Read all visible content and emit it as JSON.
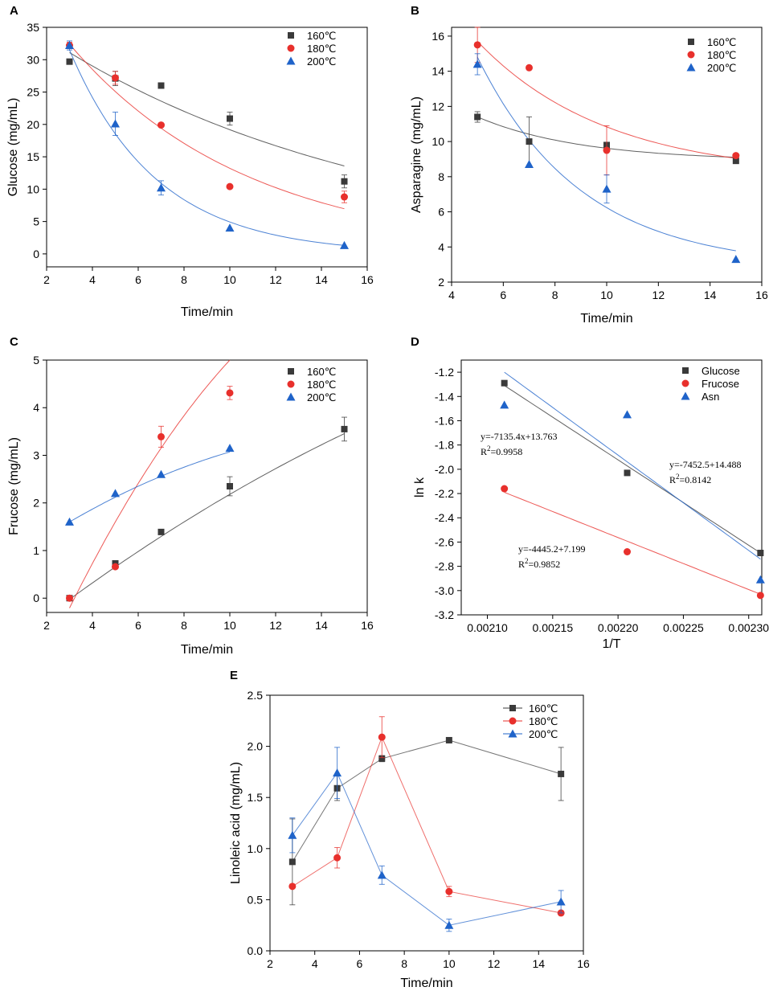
{
  "chart_data": [
    {
      "panel": "A",
      "type": "scatter",
      "xlabel": "Time/min",
      "ylabel": "Glucose (mg/mL)",
      "xlim": [
        2,
        16
      ],
      "ylim": [
        -2,
        35
      ],
      "xticks": [
        2,
        4,
        6,
        8,
        10,
        12,
        14,
        16
      ],
      "yticks": [
        0,
        5,
        10,
        15,
        20,
        25,
        30,
        35
      ],
      "legend": "top-right",
      "series": [
        {
          "name": "160℃",
          "color": "#3a3a3a",
          "marker": "square",
          "x": [
            3,
            5,
            7,
            10,
            15
          ],
          "y": [
            29.7,
            27.1,
            26.0,
            20.9,
            11.2
          ],
          "err": [
            0,
            1.1,
            0,
            1.0,
            1.0
          ],
          "fit": {
            "kind": "exp",
            "x0": 3,
            "x1": 15,
            "y0": 31.1,
            "rate": 0.069
          }
        },
        {
          "name": "180℃",
          "color": "#e8302c",
          "marker": "circle",
          "x": [
            3,
            5,
            7,
            10,
            15
          ],
          "y": [
            32.2,
            27.2,
            19.9,
            10.4,
            8.8
          ],
          "err": [
            0.5,
            1.0,
            0,
            0,
            0.9
          ],
          "fit": {
            "kind": "exp",
            "x0": 3,
            "x1": 15,
            "y0": 32.4,
            "rate": 0.128
          }
        },
        {
          "name": "200℃",
          "color": "#1f63c9",
          "marker": "triangle",
          "x": [
            3,
            5,
            7,
            10,
            15
          ],
          "y": [
            32.2,
            20.1,
            10.2,
            4.0,
            1.3
          ],
          "err": [
            0.7,
            1.8,
            1.1,
            0,
            0
          ],
          "fit": {
            "kind": "exp",
            "x0": 3,
            "x1": 15,
            "y0": 31.5,
            "rate": 0.265
          }
        }
      ]
    },
    {
      "panel": "B",
      "type": "scatter",
      "xlabel": "Time/min",
      "ylabel": "Asparagine (mg/mL)",
      "xlim": [
        4,
        16
      ],
      "ylim": [
        2,
        16.5
      ],
      "xticks": [
        4,
        6,
        8,
        10,
        12,
        14,
        16
      ],
      "yticks": [
        2,
        4,
        6,
        8,
        10,
        12,
        14,
        16
      ],
      "legend": "top-right",
      "series": [
        {
          "name": "160℃",
          "color": "#3a3a3a",
          "marker": "square",
          "x": [
            5,
            7,
            10,
            15
          ],
          "y": [
            11.4,
            10.0,
            9.8,
            8.9
          ],
          "err": [
            0.3,
            1.4,
            0,
            0
          ],
          "fit": {
            "kind": "expc",
            "x0": 5,
            "x1": 15,
            "c": 8.9,
            "a": 2.5,
            "rate": 0.25
          }
        },
        {
          "name": "180℃",
          "color": "#e8302c",
          "marker": "circle",
          "x": [
            5,
            7,
            10,
            15
          ],
          "y": [
            15.5,
            14.2,
            9.5,
            9.2
          ],
          "err": [
            1.0,
            0,
            1.4,
            0
          ],
          "fit": {
            "kind": "expc",
            "x0": 5,
            "x1": 15,
            "c": 8.0,
            "a": 7.7,
            "rate": 0.2
          }
        },
        {
          "name": "200℃",
          "color": "#1f63c9",
          "marker": "triangle",
          "x": [
            5,
            7,
            10,
            15
          ],
          "y": [
            14.4,
            8.7,
            7.3,
            3.3
          ],
          "err": [
            0.6,
            0,
            0.8,
            0
          ],
          "fit": {
            "kind": "expc",
            "x0": 5,
            "x1": 15,
            "c": 2.8,
            "a": 12.0,
            "rate": 0.25
          }
        }
      ]
    },
    {
      "panel": "C",
      "type": "scatter",
      "xlabel": "Time/min",
      "ylabel": "Frucose (mg/mL)",
      "xlim": [
        2,
        16
      ],
      "ylim": [
        -0.3,
        5
      ],
      "xticks": [
        2,
        4,
        6,
        8,
        10,
        12,
        14,
        16
      ],
      "yticks": [
        0,
        1,
        2,
        3,
        4,
        5
      ],
      "legend": "top-right",
      "series": [
        {
          "name": "160℃",
          "color": "#3a3a3a",
          "marker": "square",
          "x": [
            3,
            5,
            7,
            10,
            15
          ],
          "y": [
            0.0,
            0.73,
            1.39,
            2.35,
            3.55
          ],
          "err": [
            0,
            0.05,
            0,
            0.2,
            0.25
          ],
          "fit": {
            "kind": "poly2",
            "x0": 3,
            "x1": 15,
            "a": -0.005,
            "b": 0.38,
            "c": -1.12
          }
        },
        {
          "name": "180℃",
          "color": "#e8302c",
          "marker": "circle",
          "x": [
            3,
            5,
            7,
            10
          ],
          "y": [
            0.0,
            0.66,
            3.39,
            4.31
          ],
          "err": [
            0,
            0,
            0.22,
            0.14
          ],
          "fit": {
            "kind": "poly2",
            "x0": 3,
            "x1": 10,
            "a": -0.032,
            "b": 1.16,
            "c": -3.4
          }
        },
        {
          "name": "200℃",
          "color": "#1f63c9",
          "marker": "triangle",
          "x": [
            3,
            5,
            7,
            10
          ],
          "y": [
            1.6,
            2.2,
            2.6,
            3.15
          ],
          "err": [
            0,
            0,
            0,
            0
          ],
          "fit": {
            "kind": "poly2",
            "x0": 3,
            "x1": 10,
            "a": -0.01,
            "b": 0.34,
            "c": 0.67
          }
        }
      ]
    },
    {
      "panel": "D",
      "type": "scatter",
      "xlabel": "1/T",
      "ylabel": "ln k",
      "xlim": [
        0.00208,
        0.00231
      ],
      "ylim": [
        -3.2,
        -1.1
      ],
      "xticks": [
        "0.00210",
        "0.00215",
        "0.00220",
        "0.00225",
        "0.00230"
      ],
      "yticks": [
        "-1.2",
        "-1.4",
        "-1.6",
        "-1.8",
        "-2.0",
        "-2.2",
        "-2.4",
        "-2.6",
        "-2.8",
        "-3.0",
        "-3.2"
      ],
      "legend": "top-right",
      "annotations": [
        {
          "line1": "y=-7135.4x+13.763",
          "line2": "R",
          "sup": "2",
          "line2b": "=0.9958"
        },
        {
          "line1": "y=-7452.5+14.488",
          "line2": "R",
          "sup": "2",
          "line2b": "=0.8142"
        },
        {
          "line1": "y=-4445.2+7.199",
          "line2": "R",
          "sup": "2",
          "line2b": "=0.9852"
        }
      ],
      "series": [
        {
          "name": "Glucose",
          "color": "#3a3a3a",
          "marker": "square",
          "x": [
            0.002113,
            0.002207,
            0.002309
          ],
          "y": [
            -1.29,
            -2.03,
            -2.69
          ],
          "err": [
            0,
            0,
            0
          ],
          "fit": {
            "kind": "linear",
            "x0": 0.002113,
            "x1": 0.002309,
            "y0": -1.31,
            "y1": -2.69
          }
        },
        {
          "name": "Frucose",
          "color": "#e8302c",
          "marker": "circle",
          "x": [
            0.002113,
            0.002207,
            0.002309
          ],
          "y": [
            -2.16,
            -2.68,
            -3.04
          ],
          "err": [
            0,
            0,
            0
          ],
          "fit": {
            "kind": "linear",
            "x0": 0.002113,
            "x1": 0.002309,
            "y0": -2.19,
            "y1": -3.03
          }
        },
        {
          "name": "Asn",
          "color": "#1f63c9",
          "marker": "triangle",
          "x": [
            0.002113,
            0.002207,
            0.002309
          ],
          "y": [
            -1.47,
            -1.55,
            -2.91
          ],
          "err": [
            0,
            0,
            0
          ],
          "fit": {
            "kind": "linear",
            "x0": 0.002113,
            "x1": 0.002309,
            "y0": -1.2,
            "y1": -2.74
          }
        }
      ]
    },
    {
      "panel": "E",
      "type": "line",
      "xlabel": "Time/min",
      "ylabel": "Linoleic acid (mg/mL)",
      "xlim": [
        2,
        16
      ],
      "ylim": [
        0,
        2.5
      ],
      "xticks": [
        2,
        4,
        6,
        8,
        10,
        12,
        14,
        16
      ],
      "yticks": [
        "0.0",
        "0.5",
        "1.0",
        "1.5",
        "2.0",
        "2.5"
      ],
      "legend": "top-right",
      "series": [
        {
          "name": "160℃",
          "color": "#3a3a3a",
          "marker": "square",
          "x": [
            3,
            5,
            7,
            10,
            15
          ],
          "y": [
            0.87,
            1.59,
            1.88,
            2.06,
            1.73
          ],
          "err": [
            0.42,
            0.12,
            0.03,
            0,
            0.26
          ]
        },
        {
          "name": "180℃",
          "color": "#e8302c",
          "marker": "circle",
          "x": [
            3,
            5,
            7,
            10,
            15
          ],
          "y": [
            0.63,
            0.91,
            2.09,
            0.58,
            0.37
          ],
          "err": [
            0,
            0.1,
            0.2,
            0.05,
            0
          ]
        },
        {
          "name": "200℃",
          "color": "#1f63c9",
          "marker": "triangle",
          "x": [
            3,
            5,
            7,
            10,
            15
          ],
          "y": [
            1.13,
            1.74,
            0.74,
            0.25,
            0.48
          ],
          "err": [
            0.17,
            0.25,
            0.09,
            0.06,
            0.11
          ]
        }
      ]
    }
  ]
}
